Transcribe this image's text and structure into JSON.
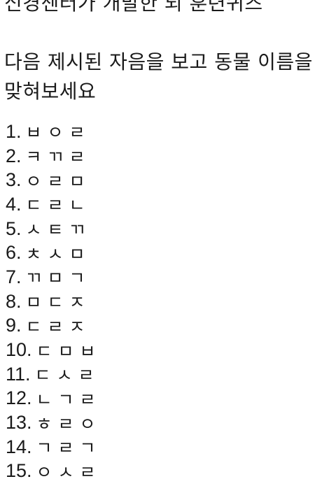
{
  "header": {
    "title": "신경센터가 개발한 뇌 훈련퀴즈"
  },
  "main": {
    "instruction": "다음 제시된 자음을 보고 동물 이름을 맞혀보세요",
    "quiz_items": [
      {
        "number": "1.",
        "hint": "ㅂㅇㄹ"
      },
      {
        "number": "2.",
        "hint": "ㅋㄲㄹ"
      },
      {
        "number": "3.",
        "hint": "ㅇㄹㅁ"
      },
      {
        "number": "4.",
        "hint": "ㄷㄹㄴ"
      },
      {
        "number": "5.",
        "hint": "ㅅㅌㄲ"
      },
      {
        "number": "6.",
        "hint": "ㅊㅅㅁ"
      },
      {
        "number": "7.",
        "hint": "ㄲㅁㄱ"
      },
      {
        "number": "8.",
        "hint": "ㅁㄷㅈ"
      },
      {
        "number": "9.",
        "hint": "ㄷㄹㅈ"
      },
      {
        "number": "10.",
        "hint": "ㄷㅁㅂ"
      },
      {
        "number": "11.",
        "hint": "ㄷㅅㄹ"
      },
      {
        "number": "12.",
        "hint": "ㄴㄱㄹ"
      },
      {
        "number": "13.",
        "hint": "ㅎㄹㅇ"
      },
      {
        "number": "14.",
        "hint": "ㄱㄹㄱ"
      },
      {
        "number": "15.",
        "hint": "ㅇㅅㄹ"
      }
    ]
  }
}
